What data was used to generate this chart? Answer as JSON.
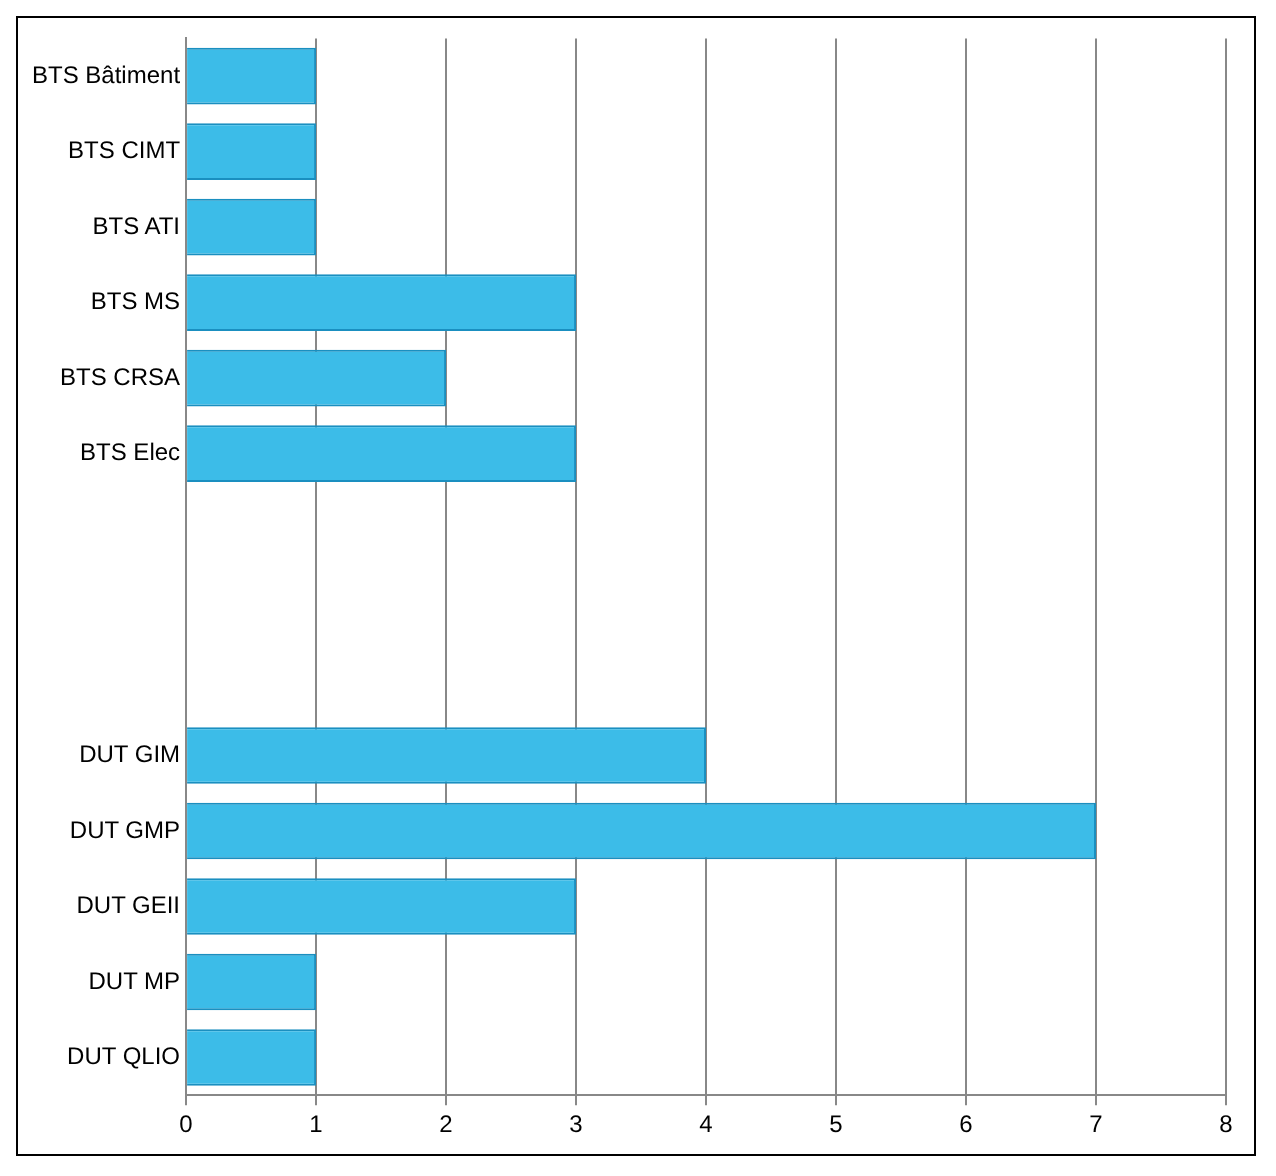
{
  "chart_data": {
    "type": "bar",
    "orientation": "horizontal",
    "categories": [
      "BTS Bâtiment",
      "BTS CIMT",
      "BTS ATI",
      "BTS MS",
      "BTS CRSA",
      "BTS Elec",
      null,
      null,
      null,
      "DUT GIM",
      "DUT GMP",
      "DUT GEII",
      "DUT MP",
      "DUT QLIO"
    ],
    "values": [
      1,
      1,
      1,
      3,
      2,
      3,
      null,
      null,
      null,
      4,
      7,
      3,
      1,
      1
    ],
    "color": "#3cbce8",
    "xlim": [
      0,
      8
    ],
    "xticks": [
      0,
      1,
      2,
      3,
      4,
      5,
      6,
      7,
      8
    ],
    "grid": "x",
    "legend": false
  }
}
